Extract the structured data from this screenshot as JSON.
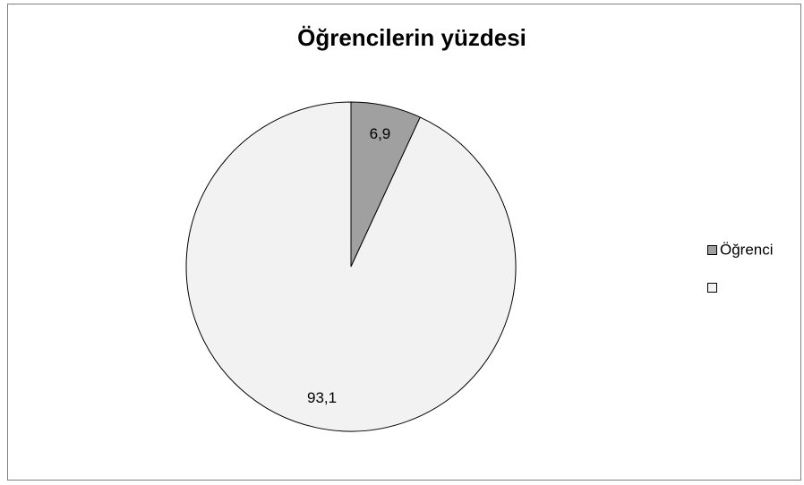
{
  "chart_data": {
    "type": "pie",
    "title": "Öğrencilerin yüzdesi",
    "categories": [
      "Öğrenci",
      null
    ],
    "values": [
      6.9,
      93.1
    ],
    "value_labels": [
      "6,9",
      "93,1"
    ],
    "colors": [
      "#a0a0a0",
      "#f2f2f2"
    ],
    "legend": "right"
  }
}
